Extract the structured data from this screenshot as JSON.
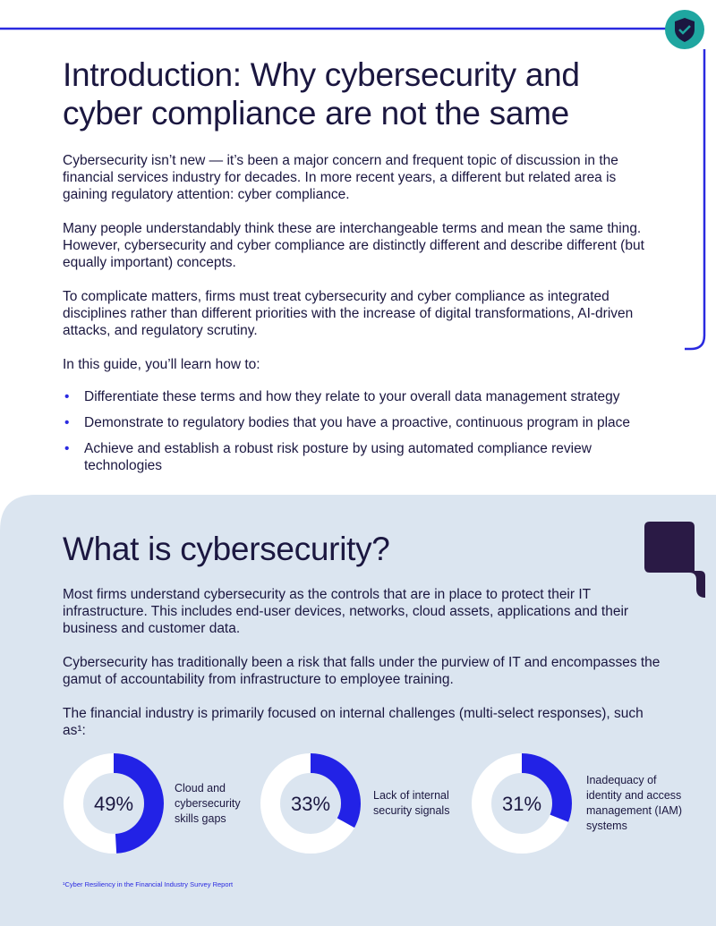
{
  "intro": {
    "title": "Introduction: Why cybersecurity and cyber compliance are not the same",
    "paragraphs": [
      "Cybersecurity isn’t new — it’s been a major concern and frequent topic of discussion in the financial services industry for decades. In more recent years, a different but related area is gaining regulatory attention: cyber compliance.",
      "Many people understandably think these are interchangeable terms and mean the same thing. However, cybersecurity and cyber compliance are distinctly different and describe different (but equally important) concepts.",
      "To complicate matters, firms must treat cybersecurity and cyber compliance as integrated disciplines rather than different priorities with the increase of digital transformations, AI-driven attacks, and regulatory scrutiny.",
      "In this guide, you’ll learn how to:"
    ],
    "bullets": [
      "Differentiate these terms and how they relate to your overall data management strategy",
      "Demonstrate to regulatory bodies that you have a proactive, continuous program in place",
      "Achieve and establish a robust risk posture by using automated compliance review technologies"
    ]
  },
  "cybersecurity": {
    "title": "What is cybersecurity?",
    "paragraphs": [
      "Most firms understand cybersecurity as the controls that are in place to protect their IT infrastructure. This includes end-user devices, networks, cloud assets, applications and their business and customer data.",
      "Cybersecurity has traditionally been a risk that falls under the purview of IT and encompasses the gamut of accountability from infrastructure to employee training.",
      "The financial industry is primarily focused on internal challenges (multi-select responses), such as¹:"
    ],
    "stats": [
      {
        "value": 49,
        "value_label": "49%",
        "label": "Cloud and cybersecurity skills gaps"
      },
      {
        "value": 33,
        "value_label": "33%",
        "label": "Lack of internal security signals"
      },
      {
        "value": 31,
        "value_label": "31%",
        "label": "Inadequacy of identity and access management (IAM) systems"
      }
    ],
    "footnote": "¹Cyber Resiliency in the Financial Industry Survey Report"
  }
}
